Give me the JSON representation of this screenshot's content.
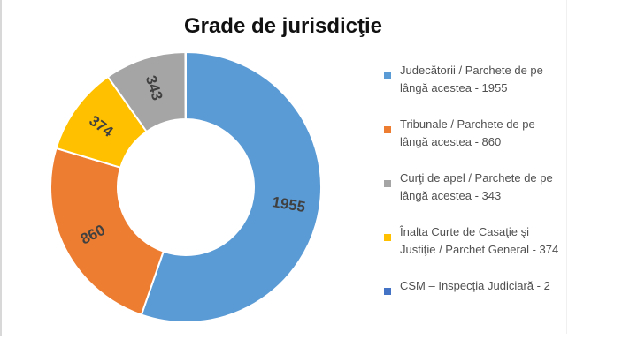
{
  "chart_data": {
    "type": "pie",
    "title": "Grade de jurisdicţie",
    "donut": true,
    "legend_position": "right",
    "categories": [
      "Judecătorii / Parchete de pe lângă acestea",
      "Tribunale / Parchete de pe lângă acestea",
      "Curţi de apel / Parchete de pe lângă acestea",
      "Înalta Curte de Casaţie şi Justiţie / Parchet General",
      "CSM – Inspecţia Judiciară"
    ],
    "values": [
      1955,
      860,
      343,
      374,
      2
    ],
    "slice_order": [
      0,
      1,
      3,
      2,
      4
    ],
    "slice_labels": [
      "1955",
      "860",
      "343",
      "374",
      ""
    ],
    "legend": [
      "Judecătorii / Parchete de pe lângă acestea - 1955",
      "Tribunale / Parchete de pe lângă acestea - 860",
      "Curţi de apel / Parchete de pe lângă acestea - 343",
      "Înalta Curte de Casaţie şi Justiţie / Parchet General - 374",
      "CSM – Inspecţia Judiciară - 2"
    ],
    "colors": [
      "#5B9BD5",
      "#ED7D31",
      "#A5A5A5",
      "#FFC000",
      "#4472C4"
    ]
  }
}
